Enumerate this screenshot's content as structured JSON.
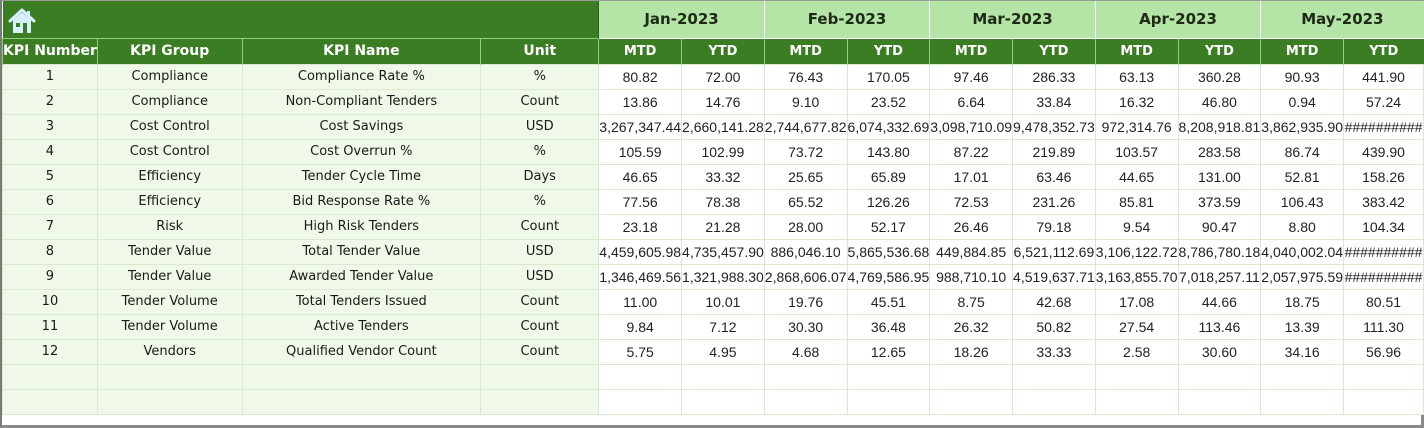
{
  "header": {
    "home_icon": "home-icon",
    "months": [
      "Jan-2023",
      "Feb-2023",
      "Mar-2023",
      "Apr-2023",
      "May-2023"
    ],
    "columns": [
      "KPI Number",
      "KPI Group",
      "KPI Name",
      "Unit"
    ],
    "sub_columns": [
      "MTD",
      "YTD"
    ]
  },
  "colors": {
    "header_dark_green": "#3b7d23",
    "month_band_light_green": "#b4e4a6",
    "info_cell_bg": "#eff8e9",
    "grid_line": "#d9ead0"
  },
  "rows": [
    {
      "num": "1",
      "group": "Compliance",
      "name": "Compliance Rate %",
      "unit": "%",
      "values": [
        "80.82",
        "72.00",
        "76.43",
        "170.05",
        "97.46",
        "286.33",
        "63.13",
        "360.28",
        "90.93",
        "441.90"
      ]
    },
    {
      "num": "2",
      "group": "Compliance",
      "name": "Non-Compliant Tenders",
      "unit": "Count",
      "values": [
        "13.86",
        "14.76",
        "9.10",
        "23.52",
        "6.64",
        "33.84",
        "16.32",
        "46.80",
        "0.94",
        "57.24"
      ]
    },
    {
      "num": "3",
      "group": "Cost Control",
      "name": "Cost Savings",
      "unit": "USD",
      "values": [
        "3,267,347.44",
        "2,660,141.28",
        "2,744,677.82",
        "6,074,332.69",
        "3,098,710.09",
        "9,478,352.73",
        "972,314.76",
        "8,208,918.81",
        "3,862,935.90",
        "##########"
      ]
    },
    {
      "num": "4",
      "group": "Cost Control",
      "name": "Cost Overrun %",
      "unit": "%",
      "values": [
        "105.59",
        "102.99",
        "73.72",
        "143.80",
        "87.22",
        "219.89",
        "103.57",
        "283.58",
        "86.74",
        "439.90"
      ]
    },
    {
      "num": "5",
      "group": "Efficiency",
      "name": "Tender Cycle Time",
      "unit": "Days",
      "values": [
        "46.65",
        "33.32",
        "25.65",
        "65.89",
        "17.01",
        "63.46",
        "44.65",
        "131.00",
        "52.81",
        "158.26"
      ]
    },
    {
      "num": "6",
      "group": "Efficiency",
      "name": "Bid Response Rate %",
      "unit": "%",
      "values": [
        "77.56",
        "78.38",
        "65.52",
        "126.26",
        "72.53",
        "231.26",
        "85.81",
        "373.59",
        "106.43",
        "383.42"
      ]
    },
    {
      "num": "7",
      "group": "Risk",
      "name": "High Risk Tenders",
      "unit": "Count",
      "values": [
        "23.18",
        "21.28",
        "28.00",
        "52.17",
        "26.46",
        "79.18",
        "9.54",
        "90.47",
        "8.80",
        "104.34"
      ]
    },
    {
      "num": "8",
      "group": "Tender Value",
      "name": "Total Tender Value",
      "unit": "USD",
      "values": [
        "4,459,605.98",
        "4,735,457.90",
        "886,046.10",
        "5,865,536.68",
        "449,884.85",
        "6,521,112.69",
        "3,106,122.72",
        "8,786,780.18",
        "4,040,002.04",
        "##########"
      ]
    },
    {
      "num": "9",
      "group": "Tender Value",
      "name": "Awarded Tender Value",
      "unit": "USD",
      "values": [
        "1,346,469.56",
        "1,321,988.30",
        "2,868,606.07",
        "4,769,586.95",
        "988,710.10",
        "4,519,637.71",
        "3,163,855.70",
        "7,018,257.11",
        "2,057,975.59",
        "##########"
      ]
    },
    {
      "num": "10",
      "group": "Tender Volume",
      "name": "Total Tenders Issued",
      "unit": "Count",
      "values": [
        "11.00",
        "10.01",
        "19.76",
        "45.51",
        "8.75",
        "42.68",
        "17.08",
        "44.66",
        "18.75",
        "80.51"
      ]
    },
    {
      "num": "11",
      "group": "Tender Volume",
      "name": "Active Tenders",
      "unit": "Count",
      "values": [
        "9.84",
        "7.12",
        "30.30",
        "36.48",
        "26.32",
        "50.82",
        "27.54",
        "113.46",
        "13.39",
        "111.30"
      ]
    },
    {
      "num": "12",
      "group": "Vendors",
      "name": "Qualified Vendor Count",
      "unit": "Count",
      "values": [
        "5.75",
        "4.95",
        "4.68",
        "12.65",
        "18.26",
        "33.33",
        "2.58",
        "30.60",
        "34.16",
        "56.96"
      ]
    },
    {
      "num": "",
      "group": "",
      "name": "",
      "unit": "",
      "values": [
        "",
        "",
        "",
        "",
        "",
        "",
        "",
        "",
        "",
        ""
      ]
    },
    {
      "num": "",
      "group": "",
      "name": "",
      "unit": "",
      "values": [
        "",
        "",
        "",
        "",
        "",
        "",
        "",
        "",
        "",
        ""
      ]
    }
  ]
}
